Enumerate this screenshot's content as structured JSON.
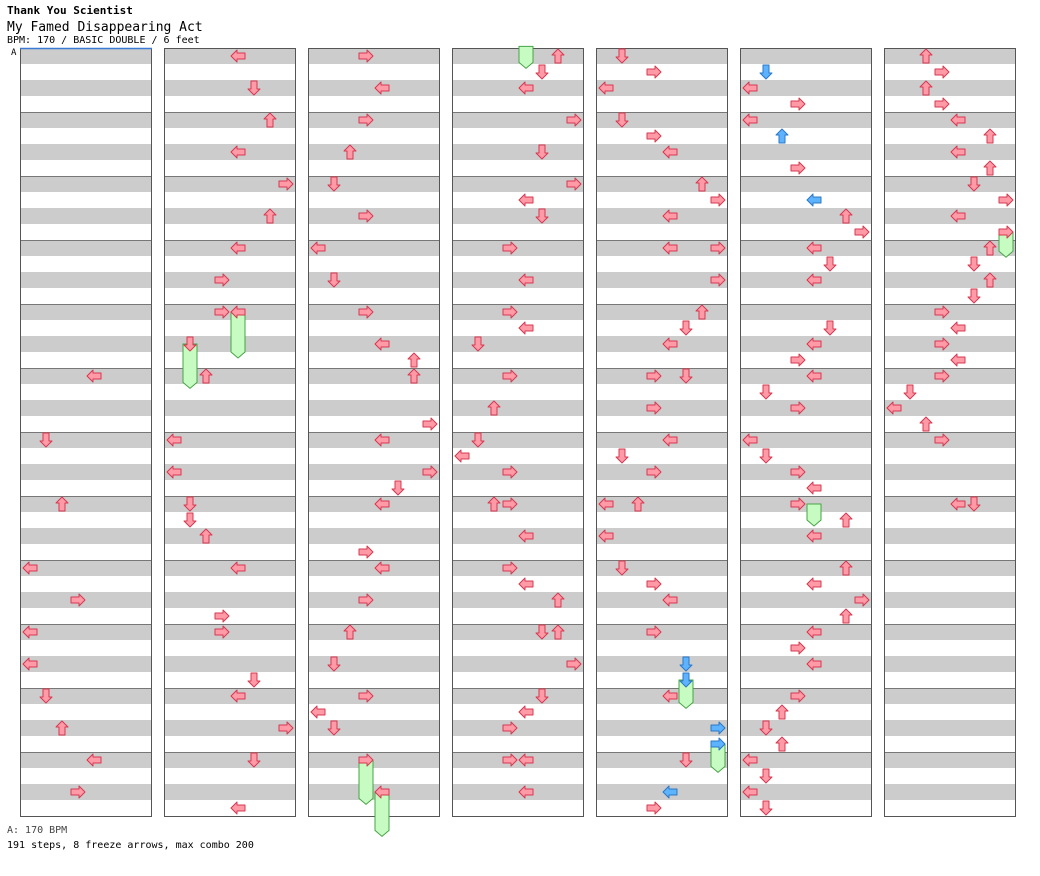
{
  "header": {
    "artist": "Thank You Scientist",
    "song": "My Famed Disappearing Act",
    "info": "BPM: 170 / BASIC DOUBLE / 6 feet",
    "bpm_marker": "A"
  },
  "footer": {
    "bpm_line": "A: 170 BPM",
    "stats": "191 steps, 8 freeze arrows, max combo 200"
  },
  "colors": {
    "note_red": "#ff9aa6",
    "note_red_stroke": "#d6384f",
    "note_blue": "#5db3ff",
    "note_blue_stroke": "#2b77c6",
    "freeze": "#c6fcc2",
    "freeze_stroke": "#47a447",
    "stripe": "#cccccc",
    "measure_line": "#777777"
  },
  "chart": {
    "columns": 7,
    "measures_per_column": 12,
    "lanes": [
      "P1-left",
      "P1-down",
      "P1-up",
      "P1-right",
      "P2-left",
      "P2-down",
      "P2-up",
      "P2-right"
    ],
    "notes": [
      {
        "c": 0,
        "m": 5,
        "l": 4,
        "t": "red"
      },
      {
        "c": 0,
        "m": 6,
        "l": 1,
        "t": "red"
      },
      {
        "c": 0,
        "m": 7,
        "l": 2,
        "t": "red"
      },
      {
        "c": 0,
        "m": 8,
        "l": 0,
        "t": "red"
      },
      {
        "c": 0,
        "m": 8.5,
        "l": 3,
        "t": "red"
      },
      {
        "c": 0,
        "m": 9,
        "l": 0,
        "t": "red"
      },
      {
        "c": 0,
        "m": 9.5,
        "l": 0,
        "t": "red"
      },
      {
        "c": 0,
        "m": 10,
        "l": 1,
        "t": "red"
      },
      {
        "c": 0,
        "m": 10.5,
        "l": 2,
        "t": "red"
      },
      {
        "c": 0,
        "m": 11,
        "l": 4,
        "t": "red"
      },
      {
        "c": 0,
        "m": 11.5,
        "l": 3,
        "t": "red"
      },
      {
        "c": 1,
        "m": 0,
        "l": 4,
        "t": "red"
      },
      {
        "c": 1,
        "m": 0.5,
        "l": 5,
        "t": "red"
      },
      {
        "c": 1,
        "m": 1,
        "l": 6,
        "t": "red"
      },
      {
        "c": 1,
        "m": 1.5,
        "l": 4,
        "t": "red"
      },
      {
        "c": 1,
        "m": 2,
        "l": 7,
        "t": "red"
      },
      {
        "c": 1,
        "m": 2.5,
        "l": 6,
        "t": "red"
      },
      {
        "c": 1,
        "m": 3,
        "l": 4,
        "t": "red"
      },
      {
        "c": 1,
        "m": 3.5,
        "l": 3,
        "t": "red"
      },
      {
        "c": 1,
        "m": 4,
        "l": 3,
        "t": "red"
      },
      {
        "c": 1,
        "m": 4,
        "l": 4,
        "t": "red"
      },
      {
        "c": 1,
        "m": 4.5,
        "l": 1,
        "t": "red"
      },
      {
        "c": 1,
        "m": 5,
        "l": 2,
        "t": "red"
      },
      {
        "c": 1,
        "m": 6,
        "l": 0,
        "t": "red"
      },
      {
        "c": 1,
        "m": 6.5,
        "l": 0,
        "t": "red"
      },
      {
        "c": 1,
        "m": 7,
        "l": 1,
        "t": "red"
      },
      {
        "c": 1,
        "m": 7.25,
        "l": 1,
        "t": "red"
      },
      {
        "c": 1,
        "m": 7.5,
        "l": 2,
        "t": "red"
      },
      {
        "c": 1,
        "m": 8,
        "l": 4,
        "t": "red"
      },
      {
        "c": 1,
        "m": 8.75,
        "l": 3,
        "t": "red"
      },
      {
        "c": 1,
        "m": 9,
        "l": 3,
        "t": "red"
      },
      {
        "c": 1,
        "m": 9.75,
        "l": 5,
        "t": "red"
      },
      {
        "c": 1,
        "m": 10,
        "l": 4,
        "t": "red"
      },
      {
        "c": 1,
        "m": 10.5,
        "l": 7,
        "t": "red"
      },
      {
        "c": 1,
        "m": 11,
        "l": 5,
        "t": "red"
      },
      {
        "c": 1,
        "m": 11.75,
        "l": 4,
        "t": "red"
      },
      {
        "c": 2,
        "m": 0,
        "l": 3,
        "t": "red"
      },
      {
        "c": 2,
        "m": 0.5,
        "l": 4,
        "t": "red"
      },
      {
        "c": 2,
        "m": 1,
        "l": 3,
        "t": "red"
      },
      {
        "c": 2,
        "m": 1.5,
        "l": 2,
        "t": "red"
      },
      {
        "c": 2,
        "m": 2,
        "l": 1,
        "t": "red"
      },
      {
        "c": 2,
        "m": 2.5,
        "l": 3,
        "t": "red"
      },
      {
        "c": 2,
        "m": 3,
        "l": 0,
        "t": "red"
      },
      {
        "c": 2,
        "m": 3.5,
        "l": 1,
        "t": "red"
      },
      {
        "c": 2,
        "m": 4,
        "l": 3,
        "t": "red"
      },
      {
        "c": 2,
        "m": 4.5,
        "l": 4,
        "t": "red"
      },
      {
        "c": 2,
        "m": 4.75,
        "l": 6,
        "t": "red"
      },
      {
        "c": 2,
        "m": 5,
        "l": 6,
        "t": "red"
      },
      {
        "c": 2,
        "m": 5.75,
        "l": 7,
        "t": "red"
      },
      {
        "c": 2,
        "m": 6,
        "l": 4,
        "t": "red"
      },
      {
        "c": 2,
        "m": 6.5,
        "l": 7,
        "t": "red"
      },
      {
        "c": 2,
        "m": 6.75,
        "l": 5,
        "t": "red"
      },
      {
        "c": 2,
        "m": 7,
        "l": 4,
        "t": "red"
      },
      {
        "c": 2,
        "m": 7.75,
        "l": 3,
        "t": "red"
      },
      {
        "c": 2,
        "m": 8,
        "l": 4,
        "t": "red"
      },
      {
        "c": 2,
        "m": 8.5,
        "l": 3,
        "t": "red"
      },
      {
        "c": 2,
        "m": 9,
        "l": 2,
        "t": "red"
      },
      {
        "c": 2,
        "m": 9.5,
        "l": 1,
        "t": "red"
      },
      {
        "c": 2,
        "m": 10,
        "l": 3,
        "t": "red"
      },
      {
        "c": 2,
        "m": 10.25,
        "l": 0,
        "t": "red"
      },
      {
        "c": 2,
        "m": 10.5,
        "l": 1,
        "t": "red"
      },
      {
        "c": 2,
        "m": 11,
        "l": 3,
        "t": "red"
      },
      {
        "c": 2,
        "m": 11.5,
        "l": 4,
        "t": "red"
      },
      {
        "c": 3,
        "m": 0,
        "l": 6,
        "t": "red"
      },
      {
        "c": 3,
        "m": 0.25,
        "l": 5,
        "t": "red"
      },
      {
        "c": 3,
        "m": 0.5,
        "l": 4,
        "t": "red"
      },
      {
        "c": 3,
        "m": 1,
        "l": 7,
        "t": "red"
      },
      {
        "c": 3,
        "m": 1.5,
        "l": 5,
        "t": "red"
      },
      {
        "c": 3,
        "m": 2,
        "l": 7,
        "t": "red"
      },
      {
        "c": 3,
        "m": 2.25,
        "l": 4,
        "t": "red"
      },
      {
        "c": 3,
        "m": 2.5,
        "l": 5,
        "t": "red"
      },
      {
        "c": 3,
        "m": 3,
        "l": 3,
        "t": "red"
      },
      {
        "c": 3,
        "m": 3.5,
        "l": 4,
        "t": "red"
      },
      {
        "c": 3,
        "m": 4,
        "l": 3,
        "t": "red"
      },
      {
        "c": 3,
        "m": 4.25,
        "l": 4,
        "t": "red"
      },
      {
        "c": 3,
        "m": 4.5,
        "l": 1,
        "t": "red"
      },
      {
        "c": 3,
        "m": 5,
        "l": 3,
        "t": "red"
      },
      {
        "c": 3,
        "m": 5.5,
        "l": 2,
        "t": "red"
      },
      {
        "c": 3,
        "m": 6,
        "l": 1,
        "t": "red"
      },
      {
        "c": 3,
        "m": 6.25,
        "l": 0,
        "t": "red"
      },
      {
        "c": 3,
        "m": 6.5,
        "l": 3,
        "t": "red"
      },
      {
        "c": 3,
        "m": 7,
        "l": 2,
        "t": "red"
      },
      {
        "c": 3,
        "m": 7,
        "l": 3,
        "t": "red"
      },
      {
        "c": 3,
        "m": 7.5,
        "l": 4,
        "t": "red"
      },
      {
        "c": 3,
        "m": 8,
        "l": 3,
        "t": "red"
      },
      {
        "c": 3,
        "m": 8.25,
        "l": 4,
        "t": "red"
      },
      {
        "c": 3,
        "m": 8.5,
        "l": 6,
        "t": "red"
      },
      {
        "c": 3,
        "m": 9,
        "l": 5,
        "t": "red"
      },
      {
        "c": 3,
        "m": 9,
        "l": 6,
        "t": "red"
      },
      {
        "c": 3,
        "m": 9.5,
        "l": 7,
        "t": "red"
      },
      {
        "c": 3,
        "m": 10,
        "l": 5,
        "t": "red"
      },
      {
        "c": 3,
        "m": 10.25,
        "l": 4,
        "t": "red"
      },
      {
        "c": 3,
        "m": 10.5,
        "l": 3,
        "t": "red"
      },
      {
        "c": 3,
        "m": 11,
        "l": 3,
        "t": "red"
      },
      {
        "c": 3,
        "m": 11,
        "l": 4,
        "t": "red"
      },
      {
        "c": 3,
        "m": 11.5,
        "l": 4,
        "t": "red"
      },
      {
        "c": 4,
        "m": 0,
        "l": 1,
        "t": "red"
      },
      {
        "c": 4,
        "m": 0.25,
        "l": 3,
        "t": "red"
      },
      {
        "c": 4,
        "m": 0.5,
        "l": 0,
        "t": "red"
      },
      {
        "c": 4,
        "m": 1,
        "l": 1,
        "t": "red"
      },
      {
        "c": 4,
        "m": 1.25,
        "l": 3,
        "t": "red"
      },
      {
        "c": 4,
        "m": 1.5,
        "l": 4,
        "t": "red"
      },
      {
        "c": 4,
        "m": 2,
        "l": 6,
        "t": "red"
      },
      {
        "c": 4,
        "m": 2.25,
        "l": 7,
        "t": "red"
      },
      {
        "c": 4,
        "m": 2.5,
        "l": 4,
        "t": "red"
      },
      {
        "c": 4,
        "m": 3,
        "l": 4,
        "t": "red"
      },
      {
        "c": 4,
        "m": 3,
        "l": 7,
        "t": "red"
      },
      {
        "c": 4,
        "m": 3.5,
        "l": 7,
        "t": "red"
      },
      {
        "c": 4,
        "m": 4,
        "l": 6,
        "t": "red"
      },
      {
        "c": 4,
        "m": 4.25,
        "l": 5,
        "t": "red"
      },
      {
        "c": 4,
        "m": 4.5,
        "l": 4,
        "t": "red"
      },
      {
        "c": 4,
        "m": 5,
        "l": 3,
        "t": "red"
      },
      {
        "c": 4,
        "m": 5,
        "l": 5,
        "t": "red"
      },
      {
        "c": 4,
        "m": 5.5,
        "l": 3,
        "t": "red"
      },
      {
        "c": 4,
        "m": 6,
        "l": 4,
        "t": "red"
      },
      {
        "c": 4,
        "m": 6.25,
        "l": 1,
        "t": "red"
      },
      {
        "c": 4,
        "m": 6.5,
        "l": 3,
        "t": "red"
      },
      {
        "c": 4,
        "m": 7,
        "l": 0,
        "t": "red"
      },
      {
        "c": 4,
        "m": 7,
        "l": 2,
        "t": "red"
      },
      {
        "c": 4,
        "m": 7.5,
        "l": 0,
        "t": "red"
      },
      {
        "c": 4,
        "m": 8,
        "l": 1,
        "t": "red"
      },
      {
        "c": 4,
        "m": 8.25,
        "l": 3,
        "t": "red"
      },
      {
        "c": 4,
        "m": 8.5,
        "l": 4,
        "t": "red"
      },
      {
        "c": 4,
        "m": 9,
        "l": 3,
        "t": "red"
      },
      {
        "c": 4,
        "m": 9.5,
        "l": 5,
        "t": "blue"
      },
      {
        "c": 4,
        "m": 9.75,
        "l": 5,
        "t": "blue"
      },
      {
        "c": 4,
        "m": 10,
        "l": 4,
        "t": "red"
      },
      {
        "c": 4,
        "m": 10.5,
        "l": 7,
        "t": "blue"
      },
      {
        "c": 4,
        "m": 10.75,
        "l": 7,
        "t": "blue"
      },
      {
        "c": 4,
        "m": 11,
        "l": 5,
        "t": "red"
      },
      {
        "c": 4,
        "m": 11.5,
        "l": 4,
        "t": "blue"
      },
      {
        "c": 4,
        "m": 11.75,
        "l": 3,
        "t": "red"
      },
      {
        "c": 5,
        "m": 0.25,
        "l": 1,
        "t": "blue"
      },
      {
        "c": 5,
        "m": 0.5,
        "l": 0,
        "t": "red"
      },
      {
        "c": 5,
        "m": 0.75,
        "l": 3,
        "t": "red"
      },
      {
        "c": 5,
        "m": 1,
        "l": 0,
        "t": "red"
      },
      {
        "c": 5,
        "m": 1.25,
        "l": 2,
        "t": "blue"
      },
      {
        "c": 5,
        "m": 1.75,
        "l": 3,
        "t": "red"
      },
      {
        "c": 5,
        "m": 2.25,
        "l": 4,
        "t": "blue"
      },
      {
        "c": 5,
        "m": 2.5,
        "l": 6,
        "t": "red"
      },
      {
        "c": 5,
        "m": 2.75,
        "l": 7,
        "t": "red"
      },
      {
        "c": 5,
        "m": 3,
        "l": 4,
        "t": "red"
      },
      {
        "c": 5,
        "m": 3.25,
        "l": 5,
        "t": "red"
      },
      {
        "c": 5,
        "m": 3.5,
        "l": 4,
        "t": "red"
      },
      {
        "c": 5,
        "m": 4.25,
        "l": 5,
        "t": "red"
      },
      {
        "c": 5,
        "m": 4.5,
        "l": 4,
        "t": "red"
      },
      {
        "c": 5,
        "m": 4.75,
        "l": 3,
        "t": "red"
      },
      {
        "c": 5,
        "m": 5,
        "l": 4,
        "t": "red"
      },
      {
        "c": 5,
        "m": 5.25,
        "l": 1,
        "t": "red"
      },
      {
        "c": 5,
        "m": 5.5,
        "l": 3,
        "t": "red"
      },
      {
        "c": 5,
        "m": 6,
        "l": 0,
        "t": "red"
      },
      {
        "c": 5,
        "m": 6.25,
        "l": 1,
        "t": "red"
      },
      {
        "c": 5,
        "m": 6.5,
        "l": 3,
        "t": "red"
      },
      {
        "c": 5,
        "m": 6.75,
        "l": 4,
        "t": "red"
      },
      {
        "c": 5,
        "m": 7,
        "l": 3,
        "t": "red"
      },
      {
        "c": 5,
        "m": 7.25,
        "l": 6,
        "t": "red"
      },
      {
        "c": 5,
        "m": 7.5,
        "l": 4,
        "t": "red"
      },
      {
        "c": 5,
        "m": 8,
        "l": 6,
        "t": "red"
      },
      {
        "c": 5,
        "m": 8.25,
        "l": 4,
        "t": "red"
      },
      {
        "c": 5,
        "m": 8.5,
        "l": 7,
        "t": "red"
      },
      {
        "c": 5,
        "m": 8.75,
        "l": 6,
        "t": "red"
      },
      {
        "c": 5,
        "m": 9,
        "l": 4,
        "t": "red"
      },
      {
        "c": 5,
        "m": 9.25,
        "l": 3,
        "t": "red"
      },
      {
        "c": 5,
        "m": 9.5,
        "l": 4,
        "t": "red"
      },
      {
        "c": 5,
        "m": 10,
        "l": 3,
        "t": "red"
      },
      {
        "c": 5,
        "m": 10.25,
        "l": 2,
        "t": "red"
      },
      {
        "c": 5,
        "m": 10.5,
        "l": 1,
        "t": "red"
      },
      {
        "c": 5,
        "m": 10.75,
        "l": 2,
        "t": "red"
      },
      {
        "c": 5,
        "m": 11,
        "l": 0,
        "t": "red"
      },
      {
        "c": 5,
        "m": 11.25,
        "l": 1,
        "t": "red"
      },
      {
        "c": 5,
        "m": 11.5,
        "l": 0,
        "t": "red"
      },
      {
        "c": 5,
        "m": 11.75,
        "l": 1,
        "t": "red"
      },
      {
        "c": 6,
        "m": 0,
        "l": 2,
        "t": "red"
      },
      {
        "c": 6,
        "m": 0.25,
        "l": 3,
        "t": "red"
      },
      {
        "c": 6,
        "m": 0.5,
        "l": 2,
        "t": "red"
      },
      {
        "c": 6,
        "m": 0.75,
        "l": 3,
        "t": "red"
      },
      {
        "c": 6,
        "m": 1,
        "l": 4,
        "t": "red"
      },
      {
        "c": 6,
        "m": 1.25,
        "l": 6,
        "t": "red"
      },
      {
        "c": 6,
        "m": 1.5,
        "l": 4,
        "t": "red"
      },
      {
        "c": 6,
        "m": 1.75,
        "l": 6,
        "t": "red"
      },
      {
        "c": 6,
        "m": 2,
        "l": 5,
        "t": "red"
      },
      {
        "c": 6,
        "m": 2.25,
        "l": 7,
        "t": "red"
      },
      {
        "c": 6,
        "m": 2.5,
        "l": 4,
        "t": "red"
      },
      {
        "c": 6,
        "m": 2.75,
        "l": 7,
        "t": "red"
      },
      {
        "c": 6,
        "m": 3,
        "l": 6,
        "t": "red"
      },
      {
        "c": 6,
        "m": 3.25,
        "l": 5,
        "t": "red"
      },
      {
        "c": 6,
        "m": 3.5,
        "l": 6,
        "t": "red"
      },
      {
        "c": 6,
        "m": 3.75,
        "l": 5,
        "t": "red"
      },
      {
        "c": 6,
        "m": 4,
        "l": 3,
        "t": "red"
      },
      {
        "c": 6,
        "m": 4.25,
        "l": 4,
        "t": "red"
      },
      {
        "c": 6,
        "m": 4.5,
        "l": 3,
        "t": "red"
      },
      {
        "c": 6,
        "m": 4.75,
        "l": 4,
        "t": "red"
      },
      {
        "c": 6,
        "m": 5,
        "l": 3,
        "t": "red"
      },
      {
        "c": 6,
        "m": 5.25,
        "l": 1,
        "t": "red"
      },
      {
        "c": 6,
        "m": 5.5,
        "l": 0,
        "t": "red"
      },
      {
        "c": 6,
        "m": 5.75,
        "l": 2,
        "t": "red"
      },
      {
        "c": 6,
        "m": 6,
        "l": 3,
        "t": "red"
      },
      {
        "c": 6,
        "m": 7,
        "l": 4,
        "t": "red"
      },
      {
        "c": 6,
        "m": 7,
        "l": 5,
        "t": "red"
      }
    ],
    "freezes": [
      {
        "c": 1,
        "m0": 4,
        "m1": 4.625,
        "l": 4
      },
      {
        "c": 1,
        "m0": 4.5,
        "m1": 5.1,
        "l": 1
      },
      {
        "c": 2,
        "m0": 11,
        "m1": 11.6,
        "l": 3
      },
      {
        "c": 2,
        "m0": 11.5,
        "m1": 12.1,
        "l": 4
      },
      {
        "c": 3,
        "m0": -0.15,
        "m1": 0.1,
        "l": 4
      },
      {
        "c": 4,
        "m0": 9.75,
        "m1": 10.1,
        "l": 5
      },
      {
        "c": 4,
        "m0": 10.75,
        "m1": 11.1,
        "l": 7
      },
      {
        "c": 5,
        "m0": 7,
        "m1": 7.25,
        "l": 4
      },
      {
        "c": 6,
        "m0": 2.75,
        "m1": 3.05,
        "l": 7
      }
    ]
  }
}
